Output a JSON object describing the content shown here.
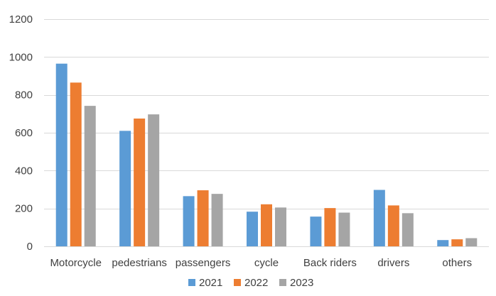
{
  "chart_data": {
    "type": "bar",
    "title": "",
    "xlabel": "",
    "ylabel": "",
    "ylim": [
      0,
      1200
    ],
    "yticks": [
      0,
      200,
      400,
      600,
      800,
      1000,
      1200
    ],
    "ytick_labels": [
      "0",
      "200",
      "400",
      "600",
      "800",
      "1000",
      "1200"
    ],
    "grid": true,
    "legend_position": "bottom",
    "categories": [
      "Motorcycle",
      "pedestrians",
      "passengers",
      "cycle",
      "Back riders",
      "drivers",
      "others"
    ],
    "series": [
      {
        "name": "2021",
        "color": "#5b9bd5",
        "values": [
          965,
          610,
          265,
          183,
          157,
          298,
          33
        ]
      },
      {
        "name": "2022",
        "color": "#ed7d31",
        "values": [
          865,
          675,
          296,
          222,
          202,
          216,
          37
        ]
      },
      {
        "name": "2023",
        "color": "#a5a5a5",
        "values": [
          742,
          697,
          277,
          205,
          178,
          175,
          43
        ]
      }
    ],
    "gridline_color": "#d9d9d9"
  }
}
